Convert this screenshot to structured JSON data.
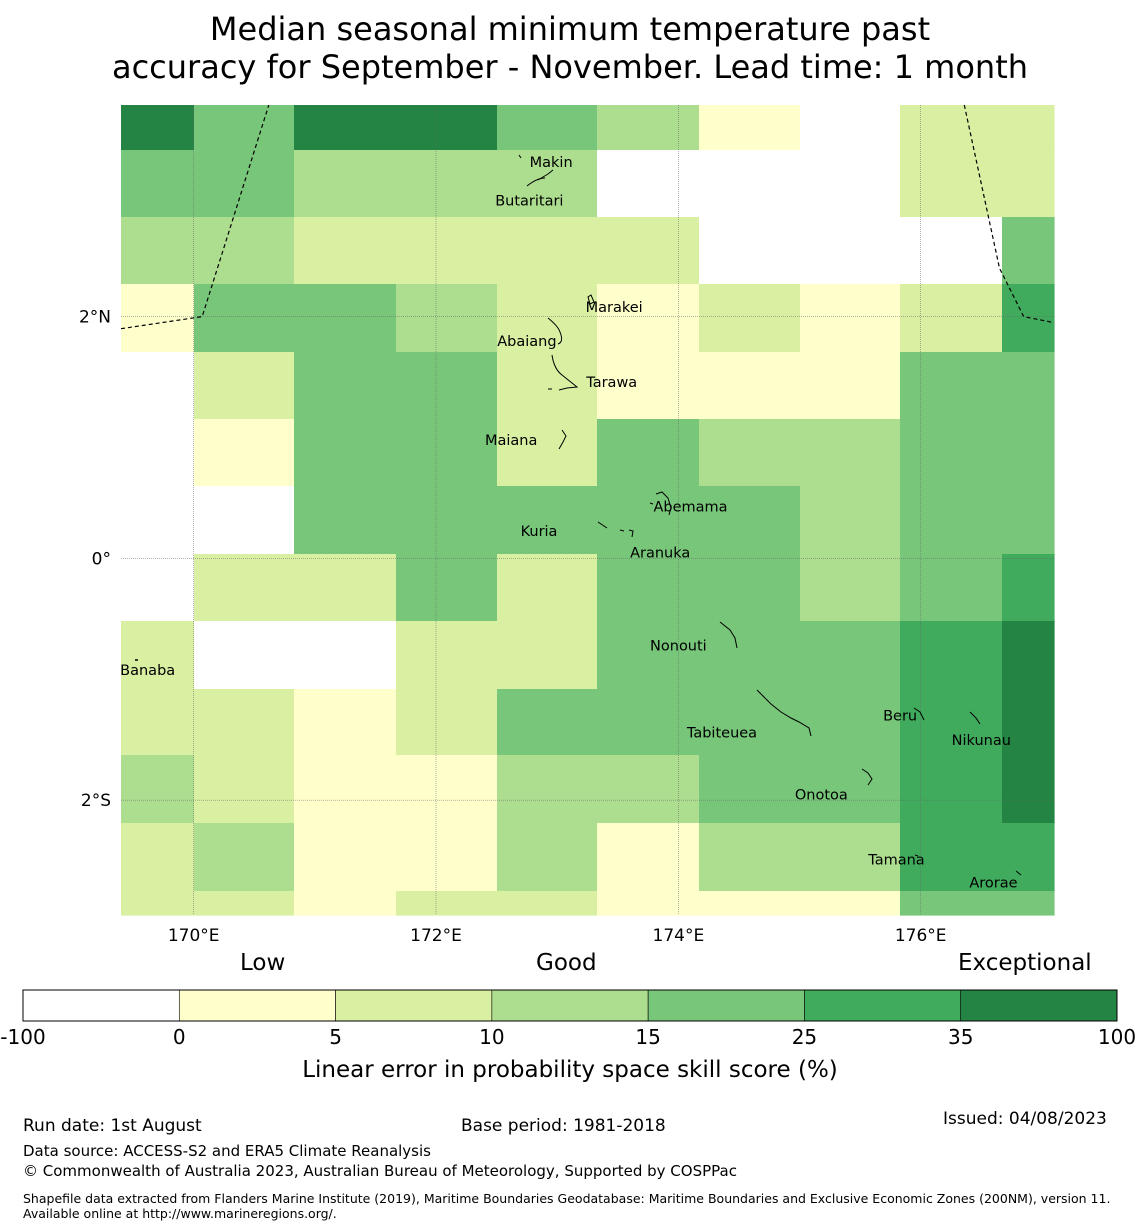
{
  "title": {
    "line1": "Median seasonal minimum temperature past",
    "line2": "accuracy for September - November. Lead time: 1 month"
  },
  "map": {
    "lon_range": [
      169.4,
      177.1
    ],
    "lat_range": [
      -2.95,
      3.75
    ],
    "grid_lon_edges": [
      169.4,
      170.0,
      170.83,
      171.67,
      172.5,
      173.33,
      174.17,
      175.0,
      175.83,
      176.67,
      177.1
    ],
    "grid_lat_edges": [
      3.75,
      3.38,
      2.82,
      2.27,
      1.71,
      1.15,
      0.6,
      0.04,
      -0.52,
      -1.08,
      -1.63,
      -2.19,
      -2.75,
      -2.95
    ],
    "cells": [
      [
        35,
        15,
        35,
        35,
        15,
        10,
        0,
        -100,
        5,
        5
      ],
      [
        15,
        15,
        10,
        10,
        10,
        -100,
        -100,
        -100,
        5,
        5
      ],
      [
        10,
        10,
        5,
        5,
        5,
        5,
        -100,
        -100,
        -100,
        15
      ],
      [
        0,
        15,
        15,
        10,
        5,
        0,
        5,
        0,
        5,
        25
      ],
      [
        -100,
        5,
        15,
        15,
        5,
        0,
        0,
        0,
        15,
        15
      ],
      [
        -100,
        0,
        15,
        15,
        5,
        15,
        10,
        10,
        15,
        15
      ],
      [
        -100,
        -100,
        15,
        15,
        15,
        15,
        15,
        10,
        15,
        15
      ],
      [
        -100,
        5,
        5,
        15,
        5,
        15,
        15,
        10,
        15,
        25
      ],
      [
        5,
        -100,
        -100,
        5,
        5,
        15,
        15,
        15,
        25,
        35
      ],
      [
        5,
        5,
        0,
        5,
        15,
        15,
        15,
        15,
        25,
        35
      ],
      [
        10,
        5,
        0,
        0,
        10,
        10,
        15,
        15,
        25,
        35
      ],
      [
        5,
        10,
        0,
        0,
        10,
        0,
        10,
        10,
        25,
        25
      ],
      [
        5,
        5,
        0,
        5,
        5,
        0,
        0,
        0,
        15,
        15
      ]
    ],
    "lat_ticks": [
      {
        "lat": 2,
        "label": "2°N"
      },
      {
        "lat": 0,
        "label": "0°"
      },
      {
        "lat": -2,
        "label": "2°S"
      }
    ],
    "lon_ticks": [
      {
        "lon": 170,
        "label": "170°E"
      },
      {
        "lon": 172,
        "label": "172°E"
      },
      {
        "lon": 174,
        "label": "174°E"
      },
      {
        "lon": 176,
        "label": "176°E"
      }
    ],
    "places": [
      {
        "name": "Makin",
        "lon": 172.95,
        "lat": 3.27
      },
      {
        "name": "Butaritari",
        "lon": 172.77,
        "lat": 2.95
      },
      {
        "name": "Marakei",
        "lon": 173.47,
        "lat": 2.07
      },
      {
        "name": "Abaiang",
        "lon": 172.75,
        "lat": 1.79
      },
      {
        "name": "Tarawa",
        "lon": 173.45,
        "lat": 1.45
      },
      {
        "name": "Maiana",
        "lon": 172.62,
        "lat": 0.97
      },
      {
        "name": "Abemama",
        "lon": 174.1,
        "lat": 0.42
      },
      {
        "name": "Kuria",
        "lon": 172.85,
        "lat": 0.22
      },
      {
        "name": "Aranuka",
        "lon": 173.85,
        "lat": 0.04
      },
      {
        "name": "Nonouti",
        "lon": 174.0,
        "lat": -0.73
      },
      {
        "name": "Banaba",
        "lon": 169.62,
        "lat": -0.93
      },
      {
        "name": "Beru",
        "lon": 175.83,
        "lat": -1.31
      },
      {
        "name": "Tabiteuea",
        "lon": 174.36,
        "lat": -1.45
      },
      {
        "name": "Nikunau",
        "lon": 176.5,
        "lat": -1.51
      },
      {
        "name": "Onotoa",
        "lon": 175.18,
        "lat": -1.96
      },
      {
        "name": "Tamana",
        "lon": 175.8,
        "lat": -2.5
      },
      {
        "name": "Arorae",
        "lon": 176.6,
        "lat": -2.69
      }
    ],
    "boundary_west": [
      [
        169.4,
        1.9
      ],
      [
        170.07,
        2.0
      ],
      [
        170.62,
        3.75
      ]
    ],
    "boundary_east": [
      [
        176.36,
        3.75
      ],
      [
        176.65,
        2.4
      ],
      [
        176.85,
        2.0
      ],
      [
        177.1,
        1.95
      ]
    ]
  },
  "colorbar": {
    "categories": [
      "Low",
      "Good",
      "Exceptional"
    ],
    "bins": [
      {
        "from": "-100",
        "to": "0",
        "color": "#ffffff"
      },
      {
        "from": "0",
        "to": "5",
        "color": "#ffffcc"
      },
      {
        "from": "5",
        "to": "10",
        "color": "#d9f0a3"
      },
      {
        "from": "10",
        "to": "15",
        "color": "#addd8e"
      },
      {
        "from": "15",
        "to": "25",
        "color": "#78c679"
      },
      {
        "from": "25",
        "to": "35",
        "color": "#41ab5d"
      },
      {
        "from": "35",
        "to": "100",
        "color": "#238443"
      }
    ],
    "tick_labels": [
      "-100",
      "0",
      "5",
      "10",
      "15",
      "25",
      "35",
      "100"
    ],
    "label": "Linear error in probability space skill score (%)"
  },
  "footer": {
    "run_date": "Run date: 1st August",
    "base_period": "Base period: 1981-2018",
    "issued": "Issued: 04/08/2023",
    "data_source": "Data source: ACCESS-S2 and ERA5 Climate Reanalysis",
    "copyright": "© Commonwealth of Australia 2023, Australian Bureau of Meteorology, Supported by COSPPac",
    "shapefile": "Shapefile data extracted from Flanders Marine Institute (2019), Maritime Boundaries Geodatabase: Maritime Boundaries and Exclusive Economic Zones (200NM), version 11. Available online at http://www.marineregions.org/."
  }
}
